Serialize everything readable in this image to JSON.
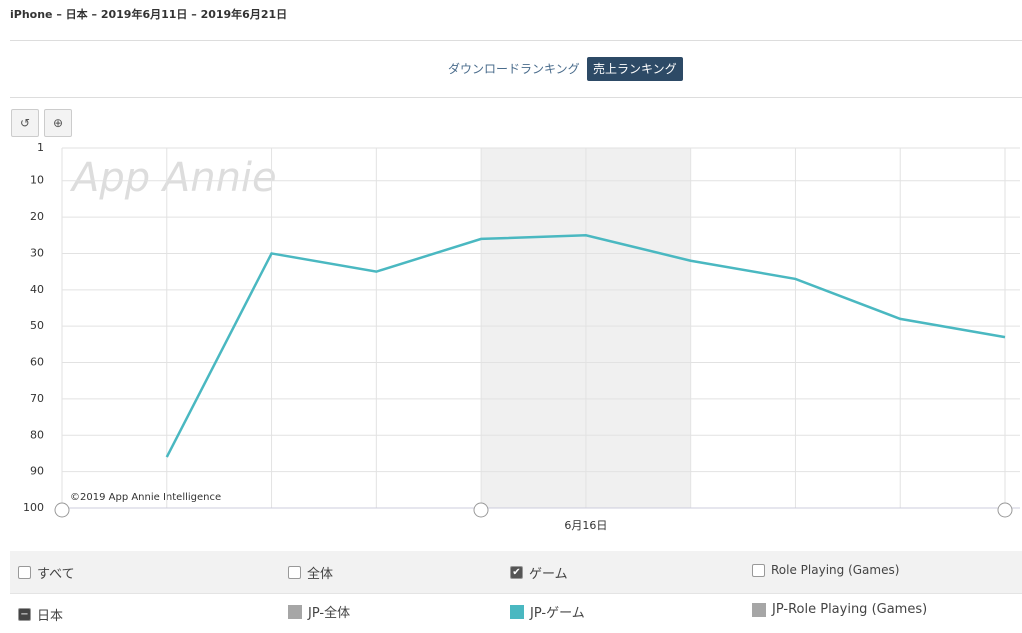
{
  "header": {
    "title": "iPhone – 日本 – 2019年6月11日 – 2019年6月21日"
  },
  "tabs": [
    {
      "label": "ダウンロードランキング",
      "active": false
    },
    {
      "label": "売上ランキング",
      "active": true
    }
  ],
  "chart_data": {
    "type": "line",
    "watermark": "App Annie",
    "copyright": "©2019 App Annie Intelligence",
    "categories": [
      null,
      null,
      null,
      null,
      null,
      "6月16日",
      null,
      null,
      null,
      null
    ],
    "series": [
      {
        "name": "JP-ゲーム",
        "color": "#4ab8c1",
        "values": [
          null,
          86,
          30,
          35,
          26,
          25,
          32,
          37,
          48,
          53
        ]
      }
    ],
    "ylim": [
      1,
      100
    ],
    "yreverse": true,
    "yticks": [
      1,
      10,
      20,
      30,
      40,
      50,
      60,
      70,
      80,
      90,
      100
    ],
    "grid": true
  },
  "legend": {
    "filters": [
      {
        "label": "すべて",
        "checked": false
      },
      {
        "label": "全体",
        "checked": false
      },
      {
        "label": "ゲーム",
        "checked": true
      },
      {
        "label": "Role Playing (Games)",
        "checked": false
      }
    ],
    "region": "日本",
    "items": [
      {
        "label": "JP-全体",
        "color": "#a6a6a6"
      },
      {
        "label": "JP-Role Playing (Games)",
        "color": "#a6a6a6"
      }
    ]
  }
}
